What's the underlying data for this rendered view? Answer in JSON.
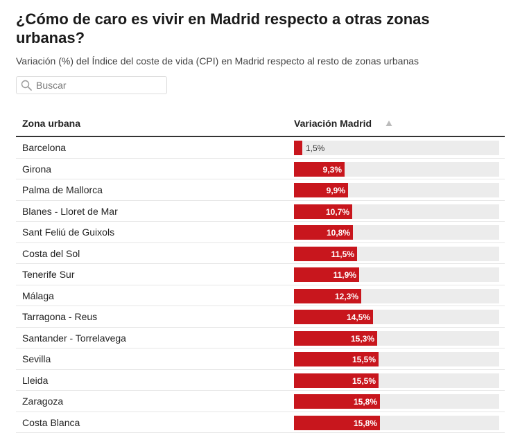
{
  "header": {
    "title": "¿Cómo de caro es vivir en Madrid respecto a otras zonas urbanas?",
    "subtitle": "Variación (%) del Índice del coste de vida (CPI) en Madrid respecto al resto de zonas urbanas"
  },
  "search": {
    "placeholder": "Buscar",
    "icon": "search-icon"
  },
  "table": {
    "columns": [
      "Zona urbana",
      "Variación Madrid"
    ],
    "sort_indicator": "triangle-up-icon"
  },
  "colors": {
    "bar": "#c8161d",
    "track": "#ececec"
  },
  "chart_data": {
    "type": "bar",
    "orientation": "horizontal",
    "categories": [
      "Barcelona",
      "Girona",
      "Palma de Mallorca",
      "Blanes - Lloret de Mar",
      "Sant Feliú de Guixols",
      "Costa del Sol",
      "Tenerife Sur",
      "Málaga",
      "Tarragona - Reus",
      "Santander - Torrelavega",
      "Sevilla",
      "Lleida",
      "Zaragoza",
      "Costa Blanca"
    ],
    "values": [
      1.5,
      9.3,
      9.9,
      10.7,
      10.8,
      11.5,
      11.9,
      12.3,
      14.5,
      15.3,
      15.5,
      15.5,
      15.8,
      15.8
    ],
    "labels": [
      "1,5%",
      "9,3%",
      "9,9%",
      "10,7%",
      "10,8%",
      "11,5%",
      "11,9%",
      "12,3%",
      "14,5%",
      "15,3%",
      "15,5%",
      "15,5%",
      "15,8%",
      "15,8%"
    ],
    "xlim": [
      0,
      37.6
    ]
  }
}
